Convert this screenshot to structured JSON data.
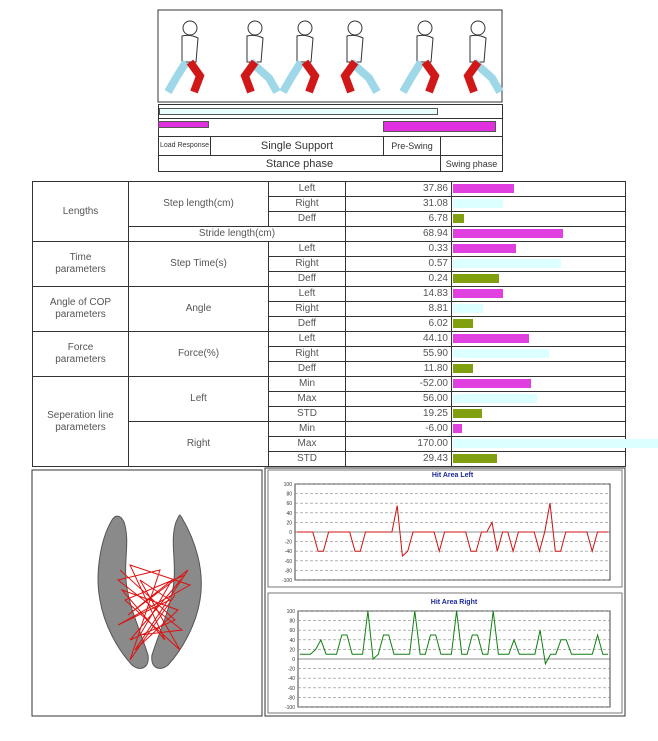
{
  "phase_diagram": {
    "phases": [
      "Load Response",
      "Single Support",
      "Pre-Swing"
    ],
    "stance": "Stance phase",
    "swing": "Swing phase"
  },
  "table": {
    "groups": [
      {
        "label": "Lengths",
        "items": [
          {
            "label": "Step length(cm)",
            "rows": [
              {
                "name": "Left",
                "value": 37.86
              },
              {
                "name": "Right",
                "value": 31.08
              },
              {
                "name": "Deff",
                "value": 6.78
              }
            ]
          },
          {
            "label": "Stride length(cm)",
            "rows": [
              {
                "value": 68.94
              }
            ]
          }
        ]
      },
      {
        "label": "Time parameters",
        "items": [
          {
            "label": "Step Time(s)",
            "rows": [
              {
                "name": "Left",
                "value": 0.33
              },
              {
                "name": "Right",
                "value": 0.57
              },
              {
                "name": "Deff",
                "value": 0.24
              }
            ]
          }
        ]
      },
      {
        "label": "Angle of COP parameters",
        "items": [
          {
            "label": "Angle",
            "rows": [
              {
                "name": "Left",
                "value": 14.83
              },
              {
                "name": "Right",
                "value": 8.81
              },
              {
                "name": "Deff",
                "value": 6.02
              }
            ]
          }
        ]
      },
      {
        "label": "Force parameters",
        "items": [
          {
            "label": "Force(%)",
            "rows": [
              {
                "name": "Left",
                "value": 44.1,
                "label": "44.10"
              },
              {
                "name": "Right",
                "value": 55.9,
                "label": "55.90"
              },
              {
                "name": "Deff",
                "value": 11.8,
                "label": "11.80"
              }
            ]
          }
        ]
      },
      {
        "label": "Seperation line parameters",
        "items": [
          {
            "label": "Left",
            "rows": [
              {
                "name": "Min",
                "value": -52,
                "label": "-52.00"
              },
              {
                "name": "Max",
                "value": 56,
                "label": "56.00"
              },
              {
                "name": "STD",
                "value": 19.25
              }
            ]
          },
          {
            "label": "Right",
            "rows": [
              {
                "name": "Min",
                "value": -6,
                "label": "-6.00"
              },
              {
                "name": "Max",
                "value": 170,
                "label": "170.00"
              },
              {
                "name": "STD",
                "value": 29.43
              }
            ]
          }
        ]
      }
    ]
  },
  "chart_data": [
    {
      "type": "line",
      "title": "Hit Area Left",
      "color": "#d01010",
      "ylim": [
        -100,
        100
      ],
      "yticks": [
        100,
        80,
        60,
        40,
        20,
        0,
        -20,
        -40,
        -60,
        -80,
        -100
      ],
      "values": [
        0,
        0,
        0,
        0,
        -40,
        -40,
        0,
        0,
        0,
        0,
        0,
        -40,
        -40,
        0,
        0,
        0,
        0,
        0,
        0,
        55,
        -50,
        -40,
        0,
        0,
        0,
        0,
        0,
        -40,
        0,
        0,
        0,
        0,
        0,
        -40,
        -40,
        0,
        0,
        20,
        -40,
        0,
        0,
        -40,
        0,
        0,
        0,
        0,
        -40,
        0,
        60,
        -40,
        -40,
        0,
        0,
        0,
        0,
        0,
        -40,
        0,
        0,
        0
      ]
    },
    {
      "type": "line",
      "title": "Hit Area Right",
      "color": "#108010",
      "ylim": [
        -100,
        100
      ],
      "yticks": [
        100,
        80,
        60,
        40,
        20,
        0,
        -20,
        -40,
        -60,
        -80,
        -100
      ],
      "values": [
        10,
        10,
        10,
        20,
        40,
        10,
        10,
        10,
        50,
        50,
        10,
        10,
        10,
        100,
        0,
        10,
        50,
        50,
        10,
        10,
        10,
        10,
        100,
        10,
        10,
        50,
        50,
        10,
        10,
        10,
        100,
        10,
        10,
        50,
        50,
        10,
        10,
        100,
        10,
        10,
        10,
        40,
        10,
        10,
        10,
        10,
        60,
        -10,
        10,
        10,
        40,
        40,
        10,
        10,
        10,
        10,
        10,
        50,
        10,
        10
      ]
    }
  ]
}
